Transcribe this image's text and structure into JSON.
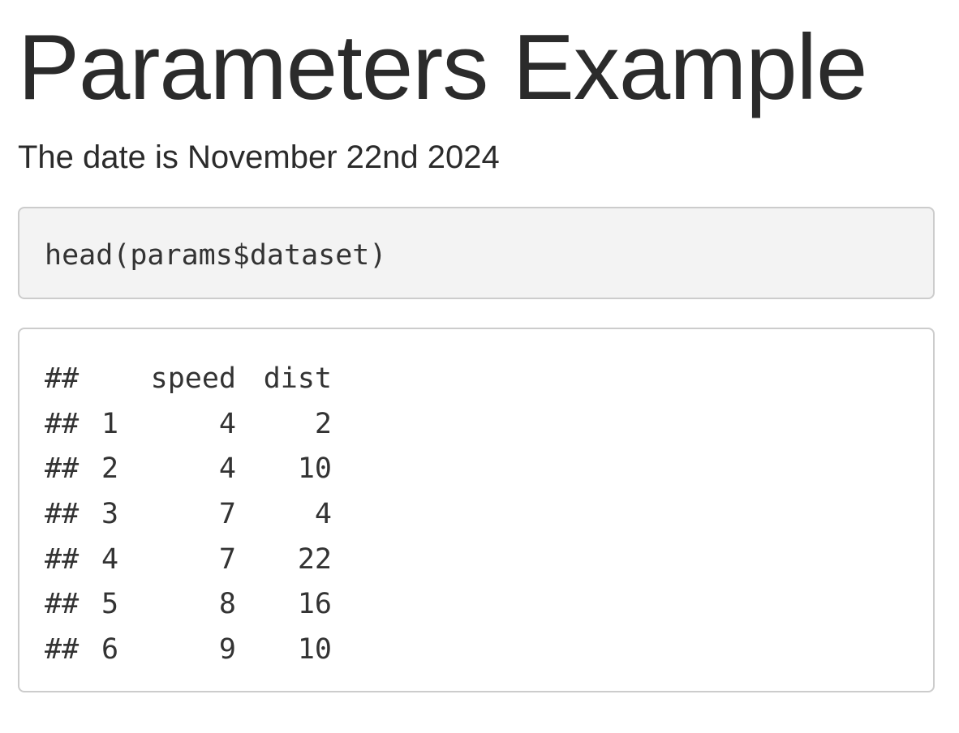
{
  "page": {
    "title": "Parameters Example",
    "date_line": "The date is November 22nd 2024"
  },
  "code": {
    "source": "head(params$dataset)"
  },
  "output": {
    "prefix": "##",
    "columns": [
      "speed",
      "dist"
    ],
    "rows": [
      {
        "index": "1",
        "speed": "4",
        "dist": "2"
      },
      {
        "index": "2",
        "speed": "4",
        "dist": "10"
      },
      {
        "index": "3",
        "speed": "7",
        "dist": "4"
      },
      {
        "index": "4",
        "speed": "7",
        "dist": "22"
      },
      {
        "index": "5",
        "speed": "8",
        "dist": "16"
      },
      {
        "index": "6",
        "speed": "9",
        "dist": "10"
      }
    ]
  }
}
